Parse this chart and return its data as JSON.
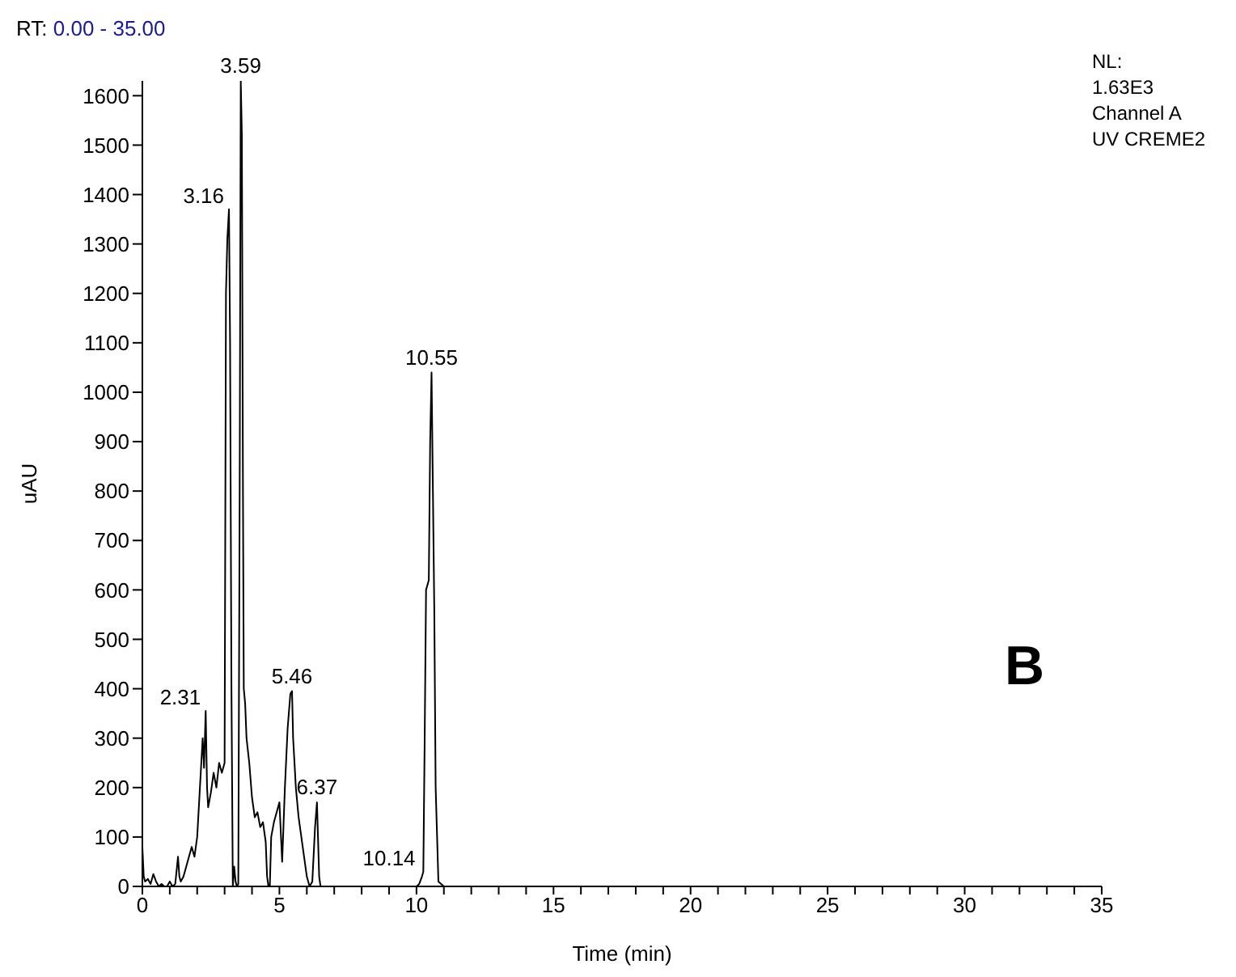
{
  "chart_data": {
    "type": "line",
    "title": "RT: 0.00 - 35.00",
    "xlabel": "Time (min)",
    "ylabel": "uAU",
    "x": [
      0,
      0.05,
      0.1,
      0.2,
      0.3,
      0.4,
      0.5,
      0.6,
      0.7,
      0.8,
      0.9,
      1.0,
      1.1,
      1.2,
      1.3,
      1.35,
      1.4,
      1.5,
      1.6,
      1.7,
      1.8,
      1.9,
      2.0,
      2.1,
      2.2,
      2.25,
      2.31,
      2.36,
      2.4,
      2.5,
      2.6,
      2.7,
      2.8,
      2.9,
      3.0,
      3.05,
      3.1,
      3.16,
      3.2,
      3.25,
      3.3,
      3.35,
      3.4,
      3.45,
      3.5,
      3.55,
      3.59,
      3.63,
      3.67,
      3.7,
      3.75,
      3.8,
      3.9,
      4.0,
      4.1,
      4.2,
      4.3,
      4.4,
      4.5,
      4.55,
      4.6,
      4.65,
      4.7,
      4.8,
      4.9,
      5.0,
      5.1,
      5.2,
      5.3,
      5.4,
      5.46,
      5.5,
      5.6,
      5.7,
      5.8,
      5.9,
      6.0,
      6.1,
      6.2,
      6.3,
      6.37,
      6.45,
      6.5,
      6.6,
      7,
      8,
      9,
      10.0,
      10.1,
      10.2,
      10.25,
      10.3,
      10.35,
      10.45,
      10.5,
      10.55,
      10.6,
      10.65,
      10.7,
      10.8,
      10.9,
      11,
      12,
      35
    ],
    "series": [
      {
        "color": "#000000",
        "values": [
          80,
          20,
          10,
          15,
          5,
          25,
          10,
          0,
          5,
          0,
          0,
          10,
          0,
          5,
          60,
          20,
          10,
          20,
          40,
          60,
          80,
          60,
          100,
          200,
          300,
          240,
          355,
          200,
          160,
          190,
          230,
          200,
          250,
          230,
          250,
          1200,
          1310,
          1370,
          1100,
          400,
          0,
          40,
          10,
          0,
          5,
          800,
          1630,
          1520,
          800,
          400,
          370,
          300,
          250,
          180,
          140,
          150,
          120,
          130,
          90,
          20,
          0,
          0,
          100,
          130,
          150,
          170,
          50,
          200,
          320,
          390,
          395,
          300,
          200,
          140,
          100,
          60,
          20,
          0,
          10,
          120,
          170,
          20,
          0,
          0,
          0,
          0,
          0,
          0,
          5,
          20,
          30,
          300,
          600,
          620,
          900,
          1040,
          800,
          560,
          200,
          10,
          5,
          0,
          0,
          0
        ]
      }
    ],
    "xlim": [
      0,
      35
    ],
    "ylim": [
      0,
      1630
    ],
    "xticks": [
      0,
      {
        "value": 1,
        "label": null
      },
      {
        "value": 2,
        "label": null
      },
      {
        "value": 3,
        "label": null
      },
      {
        "value": 4,
        "label": null
      },
      5,
      {
        "value": 6,
        "label": null
      },
      {
        "value": 7,
        "label": null
      },
      {
        "value": 8,
        "label": null
      },
      {
        "value": 9,
        "label": null
      },
      10,
      {
        "value": 11,
        "label": null
      },
      {
        "value": 12,
        "label": null
      },
      {
        "value": 13,
        "label": null
      },
      {
        "value": 14,
        "label": null
      },
      15,
      {
        "value": 16,
        "label": null
      },
      {
        "value": 17,
        "label": null
      },
      {
        "value": 18,
        "label": null
      },
      {
        "value": 19,
        "label": null
      },
      20,
      {
        "value": 21,
        "label": null
      },
      {
        "value": 22,
        "label": null
      },
      {
        "value": 23,
        "label": null
      },
      {
        "value": 24,
        "label": null
      },
      25,
      {
        "value": 26,
        "label": null
      },
      {
        "value": 27,
        "label": null
      },
      {
        "value": 28,
        "label": null
      },
      {
        "value": 29,
        "label": null
      },
      30,
      {
        "value": 31,
        "label": null
      },
      {
        "value": 32,
        "label": null
      },
      {
        "value": 33,
        "label": null
      },
      {
        "value": 34,
        "label": null
      },
      35
    ],
    "yticks": [
      0,
      100,
      200,
      300,
      400,
      500,
      600,
      700,
      800,
      900,
      1000,
      1100,
      1200,
      1300,
      1400,
      1500,
      1600
    ],
    "marker": "none",
    "line_style": "solid",
    "annotations": [
      {
        "text": "2.31",
        "x": 2.31,
        "y": 355
      },
      {
        "text": "3.16",
        "x": 3.16,
        "y": 1370
      },
      {
        "text": "3.59",
        "x": 3.59,
        "y": 1630
      },
      {
        "text": "5.46",
        "x": 5.46,
        "y": 395
      },
      {
        "text": "6.37",
        "x": 6.37,
        "y": 170
      },
      {
        "text": "10.14",
        "x": 10.14,
        "y": 30
      },
      {
        "text": "10.55",
        "x": 10.55,
        "y": 1040
      },
      "NL:",
      "1.63E3",
      "Channel A",
      "UV CREME2",
      "B"
    ]
  }
}
